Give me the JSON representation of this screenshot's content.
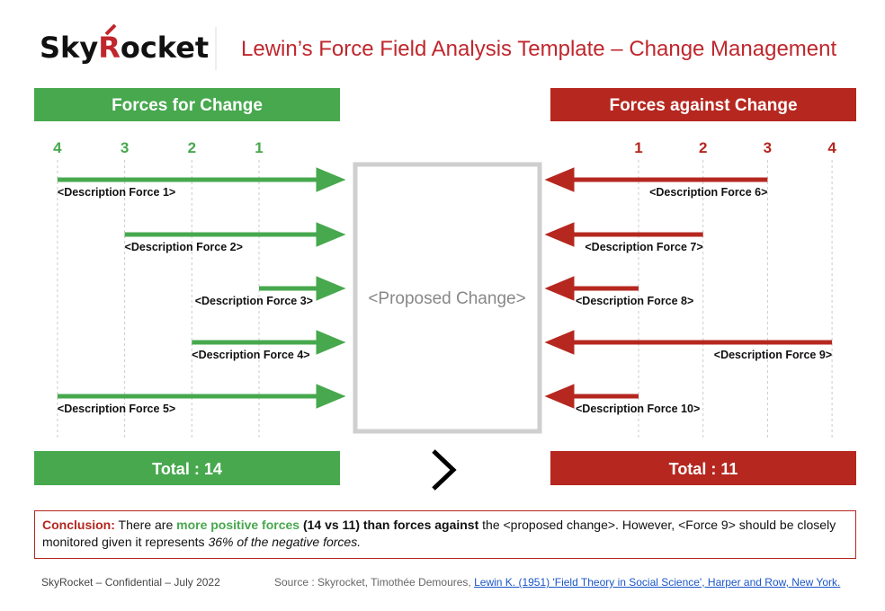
{
  "header": {
    "logo": [
      "Sky",
      "R",
      "ocket"
    ],
    "title": "Lewin’s Force Field Analysis Template – Change Management"
  },
  "forces_for": {
    "title": "Forces for Change",
    "scale": [
      4,
      3,
      2,
      1
    ],
    "items": [
      {
        "label": "<Description Force 1>",
        "strength": 4
      },
      {
        "label": "<Description Force 2>",
        "strength": 3
      },
      {
        "label": "<Description Force 3>",
        "strength": 1
      },
      {
        "label": "<Description Force 4>",
        "strength": 2
      },
      {
        "label": "<Description Force 5>",
        "strength": 4
      }
    ],
    "total": "Total : 14"
  },
  "forces_against": {
    "title": "Forces against Change",
    "scale": [
      1,
      2,
      3,
      4
    ],
    "items": [
      {
        "label": "<Description Force 6>",
        "strength": 3
      },
      {
        "label": "<Description Force 7>",
        "strength": 2
      },
      {
        "label": "<Description Force 8>",
        "strength": 1
      },
      {
        "label": "<Description Force 9>",
        "strength": 4
      },
      {
        "label": "<Description Force 10>",
        "strength": 1
      }
    ],
    "total": "Total : 11"
  },
  "proposed_change": "<Proposed Change>",
  "conclusion": {
    "label": "Conclusion:",
    "parts": [
      " There are ",
      "more positive forces",
      " (14 vs 11) than forces against",
      " the <proposed change>. However, <Force 9> should be closely monitored given it represents ",
      "36% of the negative forces."
    ]
  },
  "footer": {
    "left": "SkyRocket – Confidential – July 2022",
    "source": "Source : Skyrocket, Timothée Demoures, ",
    "link": "Lewin K. (1951) 'Field Theory in Social Science', Harper and Row, New York."
  }
}
